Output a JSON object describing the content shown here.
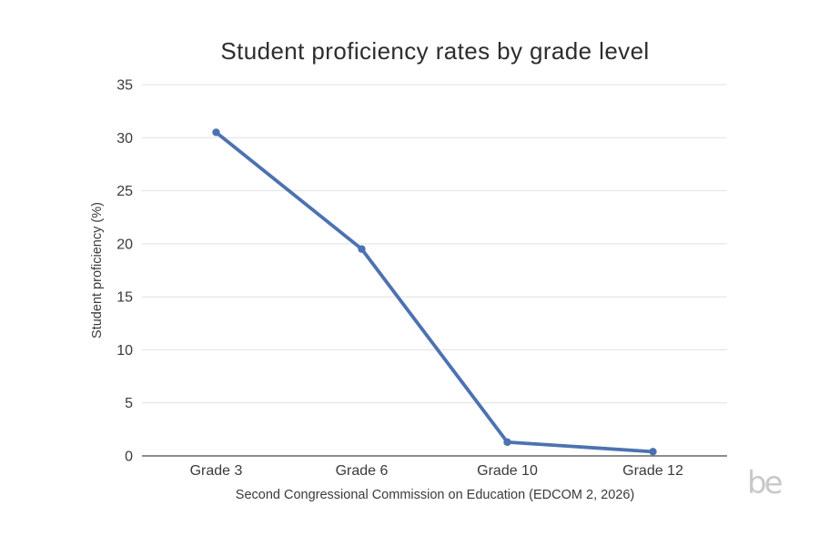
{
  "title": "Student proficiency rates by grade level",
  "caption": "Second Congressional Commission on Education (EDCOM 2, 2026)",
  "logo_text": "be",
  "chart_data": {
    "type": "line",
    "title": "Student proficiency rates by grade level",
    "xlabel": "",
    "ylabel": "Student proficiency (%)",
    "categories": [
      "Grade 3",
      "Grade 6",
      "Grade 10",
      "Grade 12"
    ],
    "values": [
      30.5,
      19.5,
      1.3,
      0.4
    ],
    "ylim": [
      0,
      35
    ],
    "yticks": [
      0,
      5,
      10,
      15,
      20,
      25,
      30,
      35
    ],
    "grid": true,
    "legend": false,
    "line_color": "#4d72b2",
    "marker_color": "#4d72b2",
    "grid_color": "#e1e1e1",
    "axis_color": "#666666",
    "text_color": "#3a3a3a"
  }
}
